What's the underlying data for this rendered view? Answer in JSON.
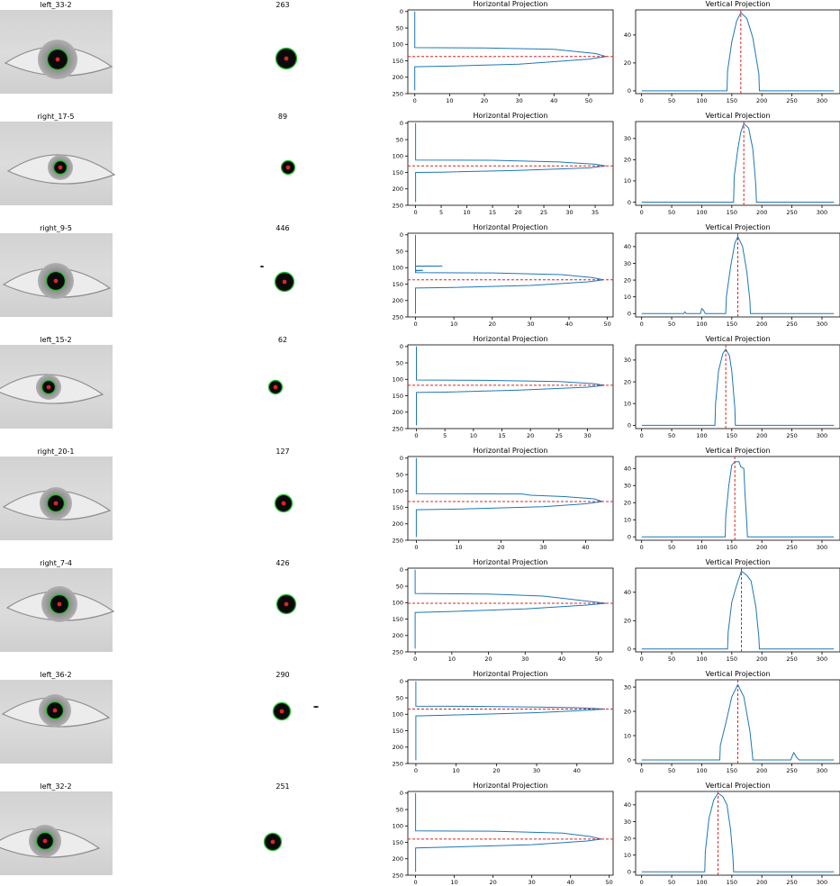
{
  "colors": {
    "projection_line": "#1f77b4",
    "peak_marker": "#d62728",
    "circle": "#22c22e",
    "centroid": "#d62728",
    "iris": "#0a0a0a"
  },
  "chart_data": [
    {
      "label": "left_33-2",
      "count": "263",
      "horizontal": {
        "type": "line",
        "title": "Horizontal Projection",
        "xlim": [
          -2,
          57
        ],
        "ylim": [
          250,
          -5
        ],
        "xticks": [
          0,
          10,
          20,
          30,
          40,
          50
        ],
        "yticks": [
          0,
          50,
          100,
          150,
          200,
          250
        ],
        "y_top": 110,
        "y_bottom": 168,
        "peak_x": 55,
        "peak_y": 137,
        "x": [
          0,
          0,
          20,
          40,
          52,
          55,
          50,
          30,
          10,
          0,
          0
        ],
        "y": [
          0,
          110,
          111,
          115,
          128,
          137,
          145,
          160,
          166,
          168,
          240
        ]
      },
      "vertical": {
        "type": "line",
        "title": "Vertical Projection",
        "xlim": [
          -10,
          330
        ],
        "ylim": [
          -2,
          58
        ],
        "xticks": [
          0,
          50,
          100,
          150,
          200,
          250,
          300
        ],
        "yticks": [
          0,
          20,
          40
        ],
        "peak_x": 165,
        "x": [
          0,
          142,
          143,
          150,
          158,
          165,
          175,
          185,
          195,
          196,
          320
        ],
        "y": [
          0,
          0,
          14,
          35,
          50,
          56,
          52,
          38,
          12,
          0,
          0
        ]
      }
    },
    {
      "label": "right_17-5",
      "count": "89",
      "horizontal": {
        "type": "line",
        "title": "Horizontal Projection",
        "xlim": [
          -1.5,
          38.5
        ],
        "ylim": [
          250,
          -5
        ],
        "xticks": [
          0,
          5,
          10,
          15,
          20,
          25,
          30,
          35
        ],
        "yticks": [
          0,
          50,
          100,
          150,
          200,
          250
        ],
        "y_top": 112,
        "y_bottom": 150,
        "peak_x": 37,
        "peak_y": 130,
        "x": [
          0,
          0,
          15,
          28,
          35,
          37,
          34,
          20,
          5,
          0,
          0
        ],
        "y": [
          0,
          112,
          113,
          118,
          125,
          130,
          136,
          144,
          149,
          150,
          240
        ]
      },
      "vertical": {
        "type": "line",
        "title": "Vertical Projection",
        "xlim": [
          -10,
          330
        ],
        "ylim": [
          -1.5,
          38
        ],
        "xticks": [
          0,
          50,
          100,
          150,
          200,
          250,
          300
        ],
        "yticks": [
          0,
          10,
          20,
          30
        ],
        "peak_x": 170,
        "x": [
          0,
          153,
          154,
          160,
          165,
          170,
          178,
          185,
          190,
          191,
          320
        ],
        "y": [
          0,
          0,
          12,
          25,
          33,
          37,
          35,
          25,
          8,
          0,
          0
        ]
      }
    },
    {
      "label": "right_9-5",
      "count": "446",
      "horizontal": {
        "type": "line",
        "title": "Horizontal Projection",
        "xlim": [
          -2,
          51.5
        ],
        "ylim": [
          250,
          -5
        ],
        "xticks": [
          0,
          10,
          20,
          30,
          40,
          50
        ],
        "yticks": [
          0,
          50,
          100,
          150,
          200,
          250
        ],
        "y_top": 115,
        "y_bottom": 162,
        "peak_x": 49,
        "peak_y": 137,
        "x": [
          0,
          0,
          7,
          0,
          0,
          2,
          0,
          0,
          20,
          38,
          46,
          49,
          45,
          30,
          10,
          0,
          0
        ],
        "y": [
          0,
          95,
          95,
          96,
          108,
          108,
          110,
          115,
          116,
          121,
          130,
          137,
          143,
          154,
          160,
          162,
          240
        ]
      },
      "vertical": {
        "type": "line",
        "title": "Vertical Projection",
        "xlim": [
          -10,
          330
        ],
        "ylim": [
          -2,
          48
        ],
        "xticks": [
          0,
          50,
          100,
          150,
          200,
          250,
          300
        ],
        "yticks": [
          0,
          10,
          20,
          30,
          40
        ],
        "peak_x": 160,
        "x": [
          0,
          70,
          72,
          74,
          98,
          100,
          103,
          106,
          140,
          141,
          148,
          155,
          160,
          168,
          175,
          180,
          181,
          320
        ],
        "y": [
          0,
          0,
          1,
          0,
          0,
          3,
          2,
          0,
          0,
          10,
          28,
          42,
          46,
          40,
          25,
          8,
          0,
          0
        ]
      }
    },
    {
      "label": "left_15-2",
      "count": "62",
      "horizontal": {
        "type": "line",
        "title": "Horizontal Projection",
        "xlim": [
          -1.5,
          34.5
        ],
        "ylim": [
          250,
          -5
        ],
        "xticks": [
          0,
          5,
          10,
          15,
          20,
          25,
          30
        ],
        "yticks": [
          0,
          50,
          100,
          150,
          200,
          250
        ],
        "y_top": 102,
        "y_bottom": 140,
        "peak_x": 33,
        "peak_y": 118,
        "x": [
          0,
          0,
          12,
          25,
          31,
          33,
          30,
          18,
          5,
          0,
          0
        ],
        "y": [
          0,
          102,
          103,
          107,
          113,
          118,
          124,
          133,
          139,
          140,
          240
        ]
      },
      "vertical": {
        "type": "line",
        "title": "Vertical Projection",
        "xlim": [
          -10,
          330
        ],
        "ylim": [
          -1.5,
          37
        ],
        "xticks": [
          0,
          50,
          100,
          150,
          200,
          250,
          300
        ],
        "yticks": [
          0,
          10,
          20,
          30
        ],
        "peak_x": 140,
        "x": [
          0,
          122,
          123,
          128,
          135,
          140,
          146,
          150,
          155,
          156,
          320
        ],
        "y": [
          0,
          0,
          10,
          25,
          33,
          35,
          32,
          25,
          8,
          0,
          0
        ]
      }
    },
    {
      "label": "right_20-1",
      "count": "127",
      "horizontal": {
        "type": "line",
        "title": "Horizontal Projection",
        "xlim": [
          -2,
          46.5
        ],
        "ylim": [
          250,
          -5
        ],
        "xticks": [
          0,
          10,
          20,
          30,
          40
        ],
        "yticks": [
          0,
          50,
          100,
          150,
          200,
          250
        ],
        "y_top": 108,
        "y_bottom": 157,
        "peak_x": 44,
        "peak_y": 132,
        "x": [
          0,
          0,
          25,
          27,
          35,
          42,
          44,
          40,
          30,
          10,
          0,
          0
        ],
        "y": [
          0,
          108,
          109,
          113,
          117,
          124,
          132,
          139,
          148,
          155,
          157,
          240
        ]
      },
      "vertical": {
        "type": "line",
        "title": "Vertical Projection",
        "xlim": [
          -10,
          330
        ],
        "ylim": [
          -2,
          47
        ],
        "xticks": [
          0,
          50,
          100,
          150,
          200,
          250,
          300
        ],
        "yticks": [
          0,
          10,
          20,
          30,
          40
        ],
        "peak_x": 155,
        "x": [
          0,
          139,
          140,
          145,
          150,
          155,
          162,
          165,
          170,
          172,
          175,
          176,
          320
        ],
        "y": [
          0,
          0,
          12,
          30,
          42,
          44,
          44,
          41,
          40,
          25,
          8,
          0,
          0
        ]
      }
    },
    {
      "label": "right_7-4",
      "count": "426",
      "horizontal": {
        "type": "line",
        "title": "Horizontal Projection",
        "xlim": [
          -2,
          54
        ],
        "ylim": [
          250,
          -5
        ],
        "xticks": [
          0,
          10,
          20,
          30,
          40,
          50
        ],
        "yticks": [
          0,
          50,
          100,
          150,
          200,
          250
        ],
        "y_top": 72,
        "y_bottom": 130,
        "peak_x": 52,
        "peak_y": 102,
        "x": [
          0,
          0,
          20,
          35,
          45,
          52,
          46,
          30,
          10,
          0,
          0
        ],
        "y": [
          0,
          72,
          74,
          80,
          93,
          102,
          108,
          119,
          127,
          130,
          240
        ]
      },
      "vertical": {
        "type": "line",
        "title": "Vertical Projection",
        "xlim": [
          -10,
          330
        ],
        "ylim": [
          -2,
          57
        ],
        "xticks": [
          0,
          50,
          100,
          150,
          200,
          250,
          300
        ],
        "yticks": [
          0,
          20,
          40
        ],
        "peak_x": 166,
        "x": [
          0,
          143,
          144,
          150,
          158,
          166,
          175,
          182,
          190,
          195,
          196,
          320
        ],
        "y": [
          0,
          0,
          12,
          33,
          45,
          55,
          52,
          48,
          30,
          8,
          0,
          0
        ]
      }
    },
    {
      "label": "left_36-2",
      "count": "290",
      "horizontal": {
        "type": "line",
        "title": "Horizontal Projection",
        "xlim": [
          -2,
          49
        ],
        "ylim": [
          250,
          -5
        ],
        "xticks": [
          0,
          10,
          20,
          30,
          40
        ],
        "yticks": [
          0,
          50,
          100,
          150,
          200,
          250
        ],
        "y_top": 75,
        "y_bottom": 105,
        "peak_x": 47,
        "peak_y": 84,
        "x": [
          0,
          0,
          15,
          30,
          40,
          44,
          47,
          42,
          30,
          10,
          0,
          0
        ],
        "y": [
          0,
          75,
          76,
          78,
          80,
          82,
          84,
          88,
          95,
          102,
          105,
          240
        ]
      },
      "vertical": {
        "type": "line",
        "title": "Vertical Projection",
        "xlim": [
          -10,
          330
        ],
        "ylim": [
          -1.5,
          33
        ],
        "xticks": [
          0,
          50,
          100,
          150,
          200,
          250,
          300
        ],
        "yticks": [
          0,
          10,
          20,
          30
        ],
        "peak_x": 160,
        "x": [
          0,
          130,
          131,
          140,
          150,
          160,
          170,
          180,
          184,
          185,
          248,
          253,
          258,
          262,
          320
        ],
        "y": [
          0,
          0,
          6,
          15,
          26,
          31,
          26,
          12,
          3,
          0,
          0,
          3,
          1,
          0,
          0
        ]
      }
    },
    {
      "label": "left_32-2",
      "count": "251",
      "horizontal": {
        "type": "line",
        "title": "Horizontal Projection",
        "xlim": [
          -2,
          51
        ],
        "ylim": [
          250,
          -5
        ],
        "xticks": [
          0,
          10,
          20,
          30,
          40,
          50
        ],
        "yticks": [
          0,
          50,
          100,
          150,
          200,
          250
        ],
        "y_top": 115,
        "y_bottom": 167,
        "peak_x": 48,
        "peak_y": 140,
        "x": [
          0,
          0,
          20,
          38,
          45,
          48,
          44,
          30,
          10,
          0,
          0
        ],
        "y": [
          0,
          115,
          116,
          122,
          132,
          140,
          146,
          157,
          164,
          167,
          240
        ]
      },
      "vertical": {
        "type": "line",
        "title": "Vertical Projection",
        "xlim": [
          -10,
          330
        ],
        "ylim": [
          -2,
          48
        ],
        "xticks": [
          0,
          50,
          100,
          150,
          200,
          250,
          300
        ],
        "yticks": [
          0,
          10,
          20,
          30,
          40
        ],
        "peak_x": 127,
        "x": [
          0,
          105,
          106,
          112,
          120,
          127,
          135,
          142,
          148,
          152,
          153,
          320
        ],
        "y": [
          0,
          0,
          12,
          32,
          43,
          47,
          45,
          40,
          25,
          8,
          0,
          0
        ]
      }
    }
  ]
}
